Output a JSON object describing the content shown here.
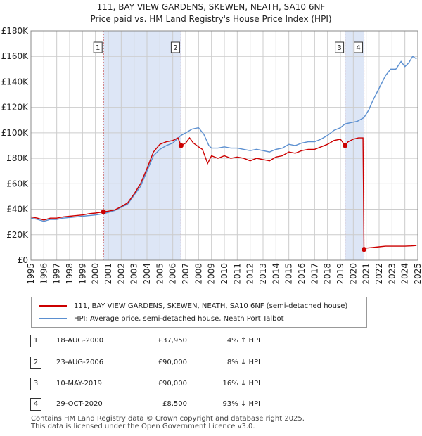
{
  "title_line1": "111, BAY VIEW GARDENS, SKEWEN, NEATH, SA10 6NF",
  "title_line2": "Price paid vs. HM Land Registry's House Price Index (HPI)",
  "colors": {
    "property": "#cc0000",
    "hpi": "#5b8fd0",
    "shade": "#dde6f6",
    "grid": "#cccccc"
  },
  "chart_data": {
    "type": "line",
    "xlim": [
      1995,
      2025
    ],
    "ylim": [
      0,
      180000
    ],
    "x_ticks": [
      "1995",
      "1996",
      "1997",
      "1998",
      "1999",
      "2000",
      "2001",
      "2002",
      "2003",
      "2004",
      "2005",
      "2006",
      "2007",
      "2008",
      "2009",
      "2010",
      "2011",
      "2012",
      "2013",
      "2014",
      "2015",
      "2016",
      "2017",
      "2018",
      "2019",
      "2020",
      "2021",
      "2022",
      "2023",
      "2024",
      "2025"
    ],
    "y_ticks": [
      {
        "value": 0,
        "label": "£0"
      },
      {
        "value": 20000,
        "label": "£20K"
      },
      {
        "value": 40000,
        "label": "£40K"
      },
      {
        "value": 60000,
        "label": "£60K"
      },
      {
        "value": 80000,
        "label": "£80K"
      },
      {
        "value": 100000,
        "label": "£100K"
      },
      {
        "value": 120000,
        "label": "£120K"
      },
      {
        "value": 140000,
        "label": "£140K"
      },
      {
        "value": 160000,
        "label": "£160K"
      },
      {
        "value": 180000,
        "label": "£180K"
      }
    ],
    "shaded_periods": [
      [
        2000.63,
        2006.64
      ],
      [
        2019.36,
        2020.83
      ]
    ],
    "series": [
      {
        "name": "111, BAY VIEW GARDENS, SKEWEN, NEATH, SA10 6NF (semi-detached house)",
        "points": [
          [
            1995.0,
            34000
          ],
          [
            1995.5,
            33000
          ],
          [
            1996.0,
            31500
          ],
          [
            1996.5,
            33000
          ],
          [
            1997.0,
            33000
          ],
          [
            1997.5,
            34000
          ],
          [
            1998.0,
            34500
          ],
          [
            1998.5,
            35000
          ],
          [
            1999.0,
            35500
          ],
          [
            1999.5,
            36500
          ],
          [
            2000.0,
            37000
          ],
          [
            2000.63,
            37950
          ],
          [
            2001.0,
            38500
          ],
          [
            2001.5,
            39500
          ],
          [
            2002.0,
            42000
          ],
          [
            2002.5,
            45000
          ],
          [
            2003.0,
            52000
          ],
          [
            2003.5,
            60000
          ],
          [
            2004.0,
            72000
          ],
          [
            2004.5,
            85000
          ],
          [
            2005.0,
            91000
          ],
          [
            2005.5,
            93000
          ],
          [
            2006.0,
            94000
          ],
          [
            2006.4,
            96000
          ],
          [
            2006.64,
            90000
          ],
          [
            2007.0,
            92000
          ],
          [
            2007.3,
            96000
          ],
          [
            2007.6,
            92000
          ],
          [
            2008.0,
            89000
          ],
          [
            2008.3,
            87000
          ],
          [
            2008.7,
            76000
          ],
          [
            2009.0,
            82000
          ],
          [
            2009.5,
            80000
          ],
          [
            2010.0,
            82000
          ],
          [
            2010.5,
            80000
          ],
          [
            2011.0,
            81000
          ],
          [
            2011.5,
            80000
          ],
          [
            2012.0,
            78000
          ],
          [
            2012.5,
            80000
          ],
          [
            2013.0,
            79000
          ],
          [
            2013.5,
            78000
          ],
          [
            2014.0,
            81000
          ],
          [
            2014.5,
            82000
          ],
          [
            2015.0,
            85000
          ],
          [
            2015.5,
            84000
          ],
          [
            2016.0,
            86000
          ],
          [
            2016.5,
            87000
          ],
          [
            2017.0,
            87000
          ],
          [
            2017.5,
            89000
          ],
          [
            2018.0,
            91000
          ],
          [
            2018.5,
            94000
          ],
          [
            2019.0,
            95000
          ],
          [
            2019.36,
            90000
          ],
          [
            2019.6,
            93000
          ],
          [
            2020.0,
            95000
          ],
          [
            2020.4,
            96000
          ],
          [
            2020.75,
            96000
          ],
          [
            2020.83,
            8500
          ],
          [
            2021.0,
            9500
          ],
          [
            2021.5,
            10000
          ],
          [
            2022.0,
            10500
          ],
          [
            2022.5,
            11000
          ],
          [
            2023.0,
            11000
          ],
          [
            2023.5,
            11000
          ],
          [
            2024.0,
            11000
          ],
          [
            2024.5,
            11200
          ],
          [
            2024.9,
            11500
          ]
        ]
      },
      {
        "name": "HPI: Average price, semi-detached house, Neath Port Talbot",
        "points": [
          [
            1995.0,
            33000
          ],
          [
            1995.5,
            32000
          ],
          [
            1996.0,
            30500
          ],
          [
            1996.5,
            32000
          ],
          [
            1997.0,
            32000
          ],
          [
            1997.5,
            33000
          ],
          [
            1998.0,
            33500
          ],
          [
            1998.5,
            34000
          ],
          [
            1999.0,
            34500
          ],
          [
            1999.5,
            35000
          ],
          [
            2000.0,
            35500
          ],
          [
            2000.63,
            36500
          ],
          [
            2001.0,
            37500
          ],
          [
            2001.5,
            39000
          ],
          [
            2002.0,
            41500
          ],
          [
            2002.5,
            44000
          ],
          [
            2003.0,
            51000
          ],
          [
            2003.5,
            58000
          ],
          [
            2004.0,
            70000
          ],
          [
            2004.5,
            82000
          ],
          [
            2005.0,
            87000
          ],
          [
            2005.5,
            90000
          ],
          [
            2006.0,
            92000
          ],
          [
            2006.64,
            98000
          ],
          [
            2007.0,
            100000
          ],
          [
            2007.5,
            103000
          ],
          [
            2008.0,
            104000
          ],
          [
            2008.4,
            99000
          ],
          [
            2008.8,
            90000
          ],
          [
            2009.0,
            88000
          ],
          [
            2009.5,
            88000
          ],
          [
            2010.0,
            89000
          ],
          [
            2010.5,
            88000
          ],
          [
            2011.0,
            88000
          ],
          [
            2011.5,
            87000
          ],
          [
            2012.0,
            86000
          ],
          [
            2012.5,
            87000
          ],
          [
            2013.0,
            86000
          ],
          [
            2013.5,
            85000
          ],
          [
            2014.0,
            87000
          ],
          [
            2014.5,
            88000
          ],
          [
            2015.0,
            91000
          ],
          [
            2015.5,
            90000
          ],
          [
            2016.0,
            92000
          ],
          [
            2016.5,
            93000
          ],
          [
            2017.0,
            93000
          ],
          [
            2017.5,
            95000
          ],
          [
            2018.0,
            98000
          ],
          [
            2018.5,
            102000
          ],
          [
            2019.0,
            104000
          ],
          [
            2019.36,
            107000
          ],
          [
            2019.8,
            108000
          ],
          [
            2020.3,
            109000
          ],
          [
            2020.83,
            112000
          ],
          [
            2021.2,
            118000
          ],
          [
            2021.5,
            125000
          ],
          [
            2022.0,
            135000
          ],
          [
            2022.5,
            145000
          ],
          [
            2022.9,
            150000
          ],
          [
            2023.3,
            150000
          ],
          [
            2023.7,
            156000
          ],
          [
            2024.0,
            152000
          ],
          [
            2024.3,
            155000
          ],
          [
            2024.6,
            160000
          ],
          [
            2024.9,
            158000
          ]
        ]
      }
    ],
    "sale_markers": [
      {
        "num": "1",
        "x": 2000.63,
        "y": 37950
      },
      {
        "num": "2",
        "x": 2006.64,
        "y": 90000
      },
      {
        "num": "3",
        "x": 2019.36,
        "y": 90000
      },
      {
        "num": "4",
        "x": 2020.83,
        "y": 8500
      }
    ],
    "legend_position": "bottom"
  },
  "legend": {
    "property_label": "111, BAY VIEW GARDENS, SKEWEN, NEATH, SA10 6NF (semi-detached house)",
    "hpi_label": "HPI: Average price, semi-detached house, Neath Port Talbot"
  },
  "sales": [
    {
      "num": "1",
      "date": "18-AUG-2000",
      "price": "£37,950",
      "hpi": "4% ↑ HPI"
    },
    {
      "num": "2",
      "date": "23-AUG-2006",
      "price": "£90,000",
      "hpi": "8% ↓ HPI"
    },
    {
      "num": "3",
      "date": "10-MAY-2019",
      "price": "£90,000",
      "hpi": "16% ↓ HPI"
    },
    {
      "num": "4",
      "date": "29-OCT-2020",
      "price": "£8,500",
      "hpi": "93% ↓ HPI"
    }
  ],
  "footer_line1": "Contains HM Land Registry data © Crown copyright and database right 2025.",
  "footer_line2": "This data is licensed under the Open Government Licence v3.0."
}
